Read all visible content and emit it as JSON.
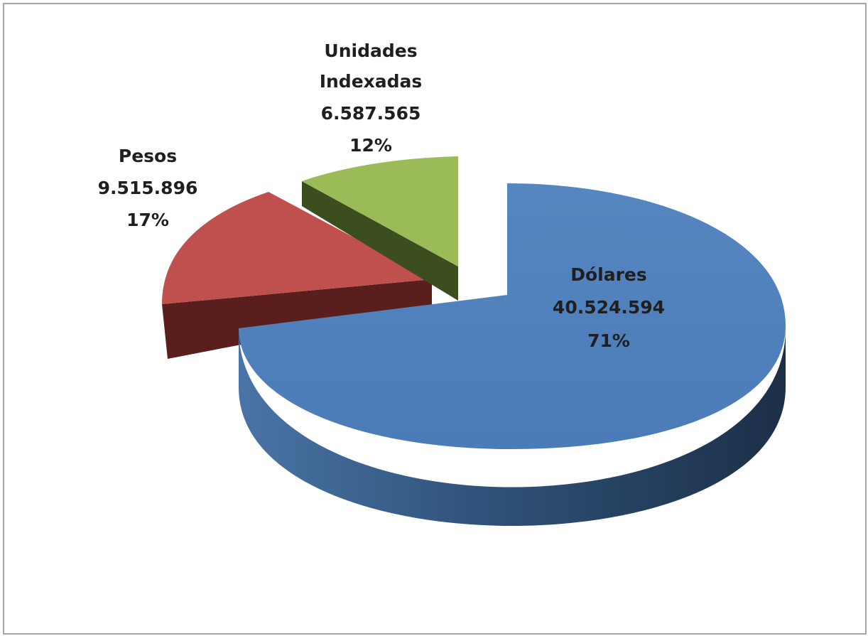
{
  "chart_data": {
    "type": "pie",
    "style": "3d-exploded",
    "title": "",
    "slices": [
      {
        "name": "Dólares",
        "value": "40.524.594",
        "percent": "71%",
        "color": "#4f81bd"
      },
      {
        "name": "Pesos",
        "value": "9.515.896",
        "percent": "17%",
        "color": "#c0504d"
      },
      {
        "name": "Unidades Indexadas",
        "name_lines": [
          "Unidades",
          "Indexadas"
        ],
        "value": "6.587.565",
        "percent": "12%",
        "color": "#9bbb59"
      }
    ],
    "legend": "none"
  }
}
